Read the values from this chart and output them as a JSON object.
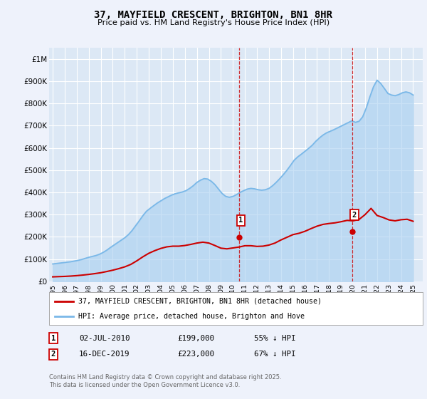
{
  "title": "37, MAYFIELD CRESCENT, BRIGHTON, BN1 8HR",
  "subtitle": "Price paid vs. HM Land Registry's House Price Index (HPI)",
  "background_color": "#eef2fb",
  "plot_bg_color": "#dce8f5",
  "grid_color": "#ffffff",
  "hpi_color": "#7ab8e8",
  "hpi_fill_color": "#a8cff0",
  "price_color": "#cc0000",
  "ylim": [
    0,
    1050000
  ],
  "yticks": [
    0,
    100000,
    200000,
    300000,
    400000,
    500000,
    600000,
    700000,
    800000,
    900000,
    1000000
  ],
  "ytick_labels": [
    "£0",
    "£100K",
    "£200K",
    "£300K",
    "£400K",
    "£500K",
    "£600K",
    "£700K",
    "£800K",
    "£900K",
    "£1M"
  ],
  "xlim_start": 1994.7,
  "xlim_end": 2025.8,
  "hpi_years": [
    1995.0,
    1995.3,
    1995.6,
    1995.9,
    1996.2,
    1996.5,
    1996.8,
    1997.1,
    1997.4,
    1997.7,
    1998.0,
    1998.3,
    1998.6,
    1998.9,
    1999.2,
    1999.5,
    1999.8,
    2000.1,
    2000.4,
    2000.7,
    2001.0,
    2001.3,
    2001.6,
    2001.9,
    2002.2,
    2002.5,
    2002.8,
    2003.1,
    2003.4,
    2003.7,
    2004.0,
    2004.3,
    2004.6,
    2004.9,
    2005.2,
    2005.5,
    2005.8,
    2006.1,
    2006.4,
    2006.7,
    2007.0,
    2007.3,
    2007.6,
    2007.9,
    2008.2,
    2008.5,
    2008.8,
    2009.1,
    2009.4,
    2009.7,
    2010.0,
    2010.3,
    2010.6,
    2010.9,
    2011.2,
    2011.5,
    2011.8,
    2012.1,
    2012.4,
    2012.7,
    2013.0,
    2013.3,
    2013.6,
    2013.9,
    2014.2,
    2014.5,
    2014.8,
    2015.1,
    2015.4,
    2015.7,
    2016.0,
    2016.3,
    2016.6,
    2016.9,
    2017.2,
    2017.5,
    2017.8,
    2018.1,
    2018.4,
    2018.7,
    2019.0,
    2019.3,
    2019.6,
    2019.9,
    2020.2,
    2020.5,
    2020.8,
    2021.1,
    2021.4,
    2021.7,
    2022.0,
    2022.3,
    2022.6,
    2022.9,
    2023.2,
    2023.5,
    2023.8,
    2024.1,
    2024.4,
    2024.7,
    2025.0
  ],
  "hpi_values": [
    78000,
    80000,
    82000,
    84000,
    86000,
    88000,
    91000,
    94000,
    98000,
    103000,
    108000,
    112000,
    116000,
    122000,
    130000,
    140000,
    152000,
    163000,
    174000,
    185000,
    196000,
    210000,
    228000,
    250000,
    272000,
    295000,
    315000,
    328000,
    340000,
    352000,
    362000,
    372000,
    380000,
    388000,
    394000,
    398000,
    402000,
    408000,
    418000,
    430000,
    445000,
    455000,
    462000,
    460000,
    450000,
    435000,
    415000,
    395000,
    382000,
    378000,
    382000,
    390000,
    400000,
    408000,
    415000,
    418000,
    416000,
    412000,
    410000,
    412000,
    418000,
    430000,
    445000,
    462000,
    480000,
    500000,
    522000,
    545000,
    560000,
    572000,
    585000,
    598000,
    612000,
    630000,
    645000,
    658000,
    668000,
    675000,
    682000,
    690000,
    698000,
    706000,
    714000,
    722000,
    715000,
    720000,
    740000,
    780000,
    830000,
    875000,
    905000,
    890000,
    868000,
    845000,
    838000,
    835000,
    840000,
    848000,
    852000,
    848000,
    838000
  ],
  "price_years": [
    1995.0,
    1995.5,
    1996.0,
    1996.5,
    1997.0,
    1997.5,
    1998.0,
    1998.5,
    1999.0,
    1999.5,
    2000.0,
    2000.5,
    2001.0,
    2001.5,
    2002.0,
    2002.5,
    2003.0,
    2003.5,
    2004.0,
    2004.5,
    2005.0,
    2005.5,
    2006.0,
    2006.5,
    2007.0,
    2007.5,
    2008.0,
    2008.5,
    2009.0,
    2009.5,
    2010.0,
    2010.5,
    2011.0,
    2011.5,
    2012.0,
    2012.5,
    2013.0,
    2013.5,
    2014.0,
    2014.5,
    2015.0,
    2015.5,
    2016.0,
    2016.5,
    2017.0,
    2017.5,
    2018.0,
    2018.5,
    2019.0,
    2019.5,
    2020.0,
    2020.5,
    2021.0,
    2021.5,
    2022.0,
    2022.5,
    2023.0,
    2023.5,
    2024.0,
    2024.5,
    2025.0
  ],
  "price_values": [
    20000,
    21000,
    22000,
    23500,
    25500,
    28000,
    31000,
    34500,
    38500,
    44000,
    50000,
    57000,
    65000,
    76000,
    92000,
    110000,
    126000,
    138000,
    148000,
    155000,
    158000,
    158000,
    161000,
    166000,
    172000,
    176000,
    172000,
    161000,
    149000,
    146000,
    150000,
    154000,
    160000,
    160000,
    157000,
    158000,
    163000,
    172000,
    186000,
    198000,
    210000,
    216000,
    225000,
    237000,
    248000,
    256000,
    260000,
    263000,
    268000,
    274000,
    272000,
    278000,
    300000,
    328000,
    296000,
    287000,
    276000,
    272000,
    277000,
    279000,
    270000
  ],
  "sale1_year": 2010.5,
  "sale1_price": 199000,
  "sale1_label": "1",
  "sale2_year": 2019.96,
  "sale2_price": 223000,
  "sale2_label": "2",
  "legend_line1": "37, MAYFIELD CRESCENT, BRIGHTON, BN1 8HR (detached house)",
  "legend_line2": "HPI: Average price, detached house, Brighton and Hove",
  "annotation1_date": "02-JUL-2010",
  "annotation1_price": "£199,000",
  "annotation1_pct": "55% ↓ HPI",
  "annotation2_date": "16-DEC-2019",
  "annotation2_price": "£223,000",
  "annotation2_pct": "67% ↓ HPI",
  "footer": "Contains HM Land Registry data © Crown copyright and database right 2025.\nThis data is licensed under the Open Government Licence v3.0.",
  "vline1_year": 2010.5,
  "vline2_year": 2019.96
}
